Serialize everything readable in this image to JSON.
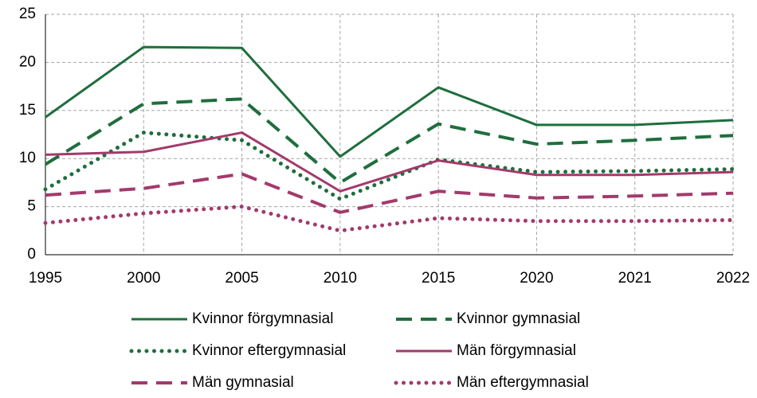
{
  "chart_data": {
    "type": "line",
    "categories": [
      "1995",
      "2000",
      "2005",
      "2010",
      "2015",
      "2020",
      "2021",
      "2022"
    ],
    "series": [
      {
        "name": "Kvinnor förgymnasial",
        "color": "#1f6e3d",
        "dash": "solid",
        "values": [
          14.3,
          21.6,
          21.5,
          10.2,
          17.4,
          13.5,
          13.5,
          14.0
        ]
      },
      {
        "name": "Kvinnor gymnasial",
        "color": "#1f6e3d",
        "dash": "dashed",
        "values": [
          9.4,
          15.7,
          16.2,
          7.5,
          13.6,
          11.5,
          11.9,
          12.4
        ]
      },
      {
        "name": "Kvinnor eftergymnasial",
        "color": "#1f6e3d",
        "dash": "dotted",
        "values": [
          6.8,
          12.7,
          11.9,
          5.8,
          9.9,
          8.6,
          8.7,
          8.9
        ]
      },
      {
        "name": "Män förgymnasial",
        "color": "#a33a6b",
        "dash": "solid",
        "values": [
          10.4,
          10.7,
          12.7,
          6.6,
          9.8,
          8.3,
          8.3,
          8.6
        ]
      },
      {
        "name": "Män gymnasial",
        "color": "#a33a6b",
        "dash": "dashed",
        "values": [
          6.2,
          6.9,
          8.4,
          4.4,
          6.6,
          5.9,
          6.1,
          6.4
        ]
      },
      {
        "name": "Män eftergymnasial",
        "color": "#a33a6b",
        "dash": "dotted",
        "values": [
          3.3,
          4.3,
          5.0,
          2.5,
          3.8,
          3.5,
          3.5,
          3.6
        ]
      }
    ],
    "ylim": [
      0,
      25
    ],
    "yticks": [
      0,
      5,
      10,
      15,
      20,
      25
    ],
    "grid": true,
    "legend": "bottom"
  }
}
